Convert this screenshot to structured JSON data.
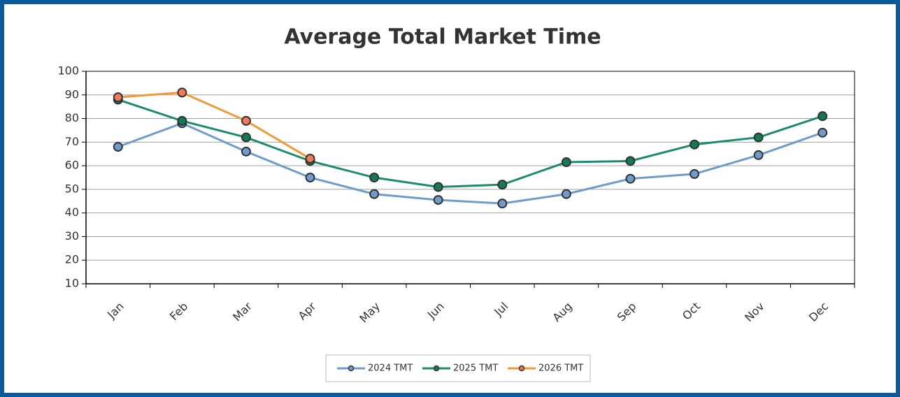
{
  "chart_data": {
    "type": "line",
    "title": "Average Total Market Time",
    "categories": [
      "Jan",
      "Feb",
      "Mar",
      "Apr",
      "May",
      "Jun",
      "Jul",
      "Aug",
      "Sep",
      "Oct",
      "Nov",
      "Dec"
    ],
    "series": [
      {
        "name": "2024 TMT",
        "color": "#6f9ccb",
        "marker_color": "#6f9ccb",
        "values": [
          68,
          78,
          66,
          55,
          48,
          45.5,
          44,
          48,
          54.5,
          56.5,
          64.5,
          74
        ]
      },
      {
        "name": "2025 TMT",
        "color": "#1e8c6c",
        "marker_color": "#137a55",
        "values": [
          88,
          79,
          72,
          62,
          55,
          51,
          52,
          61.5,
          62,
          69,
          72,
          81
        ]
      },
      {
        "name": "2026 TMT",
        "color": "#ee9a3a",
        "marker_color": "#f07a5a",
        "values": [
          89,
          91,
          79,
          63,
          null,
          null,
          null,
          null,
          null,
          null,
          null,
          null
        ]
      }
    ],
    "ylim": [
      10,
      100
    ],
    "yticks": [
      10,
      20,
      30,
      40,
      50,
      60,
      70,
      80,
      90,
      100
    ],
    "grid": true,
    "legend": "bottom"
  }
}
